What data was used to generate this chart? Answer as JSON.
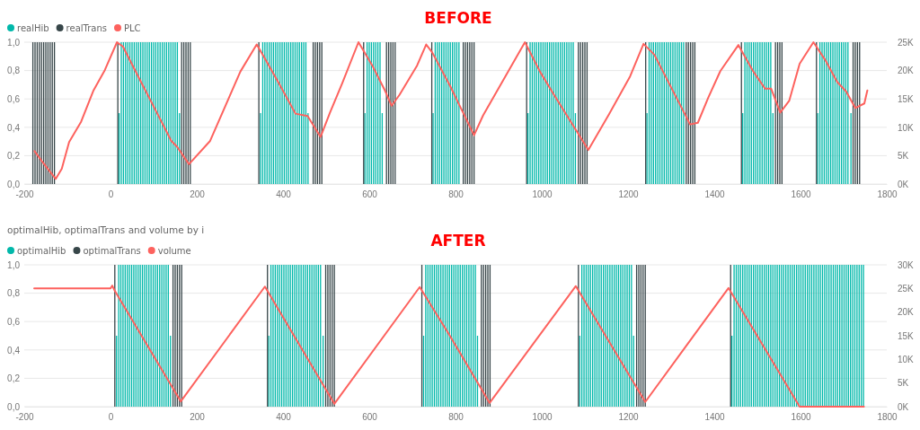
{
  "chart_data": [
    {
      "type": "bar",
      "annotations": [
        "BEFORE"
      ],
      "legend": "top left",
      "grid": "y",
      "xlim": [
        -200,
        1800
      ],
      "xticks": [
        -200,
        0,
        200,
        400,
        600,
        800,
        1000,
        1200,
        1400,
        1600,
        1800
      ],
      "ylim": [
        0,
        1
      ],
      "yticks": [
        {
          "value": 0,
          "label": "0,0"
        },
        {
          "value": 0.2,
          "label": "0,2"
        },
        {
          "value": 0.4,
          "label": "0,4"
        },
        {
          "value": 0.6,
          "label": "0,6"
        },
        {
          "value": 0.8,
          "label": "0,8"
        },
        {
          "value": 1,
          "label": "1,0"
        }
      ],
      "y2lim": [
        0,
        25000
      ],
      "y2ticks": [
        {
          "value": 0,
          "label": "0K"
        },
        {
          "value": 5000,
          "label": "5K"
        },
        {
          "value": 10000,
          "label": "10K"
        },
        {
          "value": 15000,
          "label": "15K"
        },
        {
          "value": 20000,
          "label": "20K"
        },
        {
          "value": 25000,
          "label": "25K"
        }
      ],
      "series": [
        {
          "name": "realHib",
          "color": "#01b8aa",
          "x": [
            20,
            25,
            30,
            35,
            40,
            45,
            50,
            55,
            60,
            65,
            70,
            75,
            80,
            85,
            90,
            95,
            100,
            105,
            110,
            115,
            120,
            125,
            130,
            135,
            140,
            145,
            150,
            155,
            160,
            348,
            353,
            358,
            363,
            368,
            373,
            378,
            383,
            388,
            393,
            398,
            403,
            408,
            413,
            418,
            423,
            428,
            433,
            438,
            443,
            448,
            453,
            458,
            590,
            595,
            600,
            605,
            610,
            615,
            620,
            625,
            630,
            748,
            753,
            758,
            763,
            768,
            773,
            778,
            783,
            788,
            793,
            798,
            803,
            808,
            968,
            973,
            978,
            983,
            988,
            993,
            998,
            1003,
            1008,
            1013,
            1018,
            1023,
            1028,
            1033,
            1038,
            1043,
            1048,
            1053,
            1058,
            1063,
            1068,
            1073,
            1078,
            1244,
            1249,
            1254,
            1259,
            1264,
            1269,
            1274,
            1279,
            1284,
            1289,
            1294,
            1299,
            1304,
            1309,
            1314,
            1319,
            1324,
            1329,
            1466,
            1471,
            1476,
            1481,
            1486,
            1491,
            1496,
            1501,
            1506,
            1511,
            1516,
            1521,
            1526,
            1531,
            1536,
            1640,
            1645,
            1650,
            1655,
            1660,
            1665,
            1670,
            1675,
            1680,
            1685,
            1690,
            1695,
            1700,
            1705,
            1710,
            1717
          ],
          "values": [
            0.5,
            1,
            1,
            1,
            1,
            1,
            1,
            1,
            1,
            1,
            1,
            1,
            1,
            1,
            1,
            1,
            1,
            1,
            1,
            1,
            1,
            1,
            1,
            1,
            1,
            1,
            1,
            1,
            0.5,
            0.5,
            1,
            1,
            1,
            1,
            1,
            1,
            1,
            1,
            1,
            1,
            1,
            1,
            1,
            1,
            1,
            1,
            1,
            1,
            1,
            1,
            1,
            0.5,
            0.5,
            1,
            1,
            1,
            1,
            1,
            1,
            1,
            0.5,
            0.5,
            1,
            1,
            1,
            1,
            1,
            1,
            1,
            1,
            1,
            1,
            1,
            1,
            0.5,
            1,
            1,
            1,
            1,
            1,
            1,
            1,
            1,
            1,
            1,
            1,
            1,
            1,
            1,
            1,
            1,
            1,
            1,
            1,
            1,
            1,
            0.5,
            0.5,
            1,
            1,
            1,
            1,
            1,
            1,
            1,
            1,
            1,
            1,
            1,
            1,
            1,
            1,
            1,
            1,
            1,
            0.5,
            1,
            1,
            1,
            1,
            1,
            1,
            1,
            1,
            1,
            1,
            1,
            1,
            1,
            0.5,
            0.5,
            1,
            1,
            1,
            1,
            1,
            1,
            1,
            1,
            1,
            1,
            1,
            1,
            1,
            1,
            0.5
          ]
        },
        {
          "name": "realTrans",
          "color": "#374649",
          "x": [
            -180,
            -175,
            -170,
            -165,
            -160,
            -155,
            -150,
            -145,
            -140,
            -135,
            -130,
            17,
            165,
            170,
            175,
            180,
            185,
            344,
            470,
            475,
            480,
            485,
            490,
            587,
            640,
            645,
            650,
            655,
            660,
            745,
            818,
            823,
            828,
            833,
            838,
            843,
            965,
            1085,
            1090,
            1095,
            1100,
            1105,
            1241,
            1335,
            1340,
            1345,
            1350,
            1355,
            1463,
            1542,
            1547,
            1552,
            1557,
            1637,
            1722,
            1727,
            1732,
            1737
          ],
          "values": [
            1,
            1,
            1,
            1,
            1,
            1,
            1,
            1,
            1,
            1,
            1,
            1,
            1,
            1,
            1,
            1,
            1,
            1,
            1,
            1,
            1,
            1,
            1,
            1,
            1,
            1,
            1,
            1,
            1,
            1,
            1,
            1,
            1,
            1,
            1,
            1,
            1,
            1,
            1,
            1,
            1,
            1,
            1,
            1,
            1,
            1,
            1,
            1,
            1,
            1,
            1,
            1,
            1,
            1,
            1,
            1,
            1,
            1
          ]
        },
        {
          "name": "PLC",
          "type": "line",
          "axis": "y2",
          "color": "#fd625e",
          "x": [
            -176,
            -159,
            -127,
            -113,
            -96,
            -68,
            -40,
            -13,
            15,
            29,
            64,
            106,
            141,
            154,
            182,
            231,
            301,
            339,
            356,
            391,
            429,
            457,
            487,
            509,
            537,
            575,
            607,
            635,
            652,
            670,
            711,
            732,
            746,
            788,
            843,
            864,
            961,
            996,
            1027,
            1108,
            1156,
            1205,
            1236,
            1261,
            1330,
            1344,
            1362,
            1386,
            1414,
            1456,
            1490,
            1518,
            1532,
            1553,
            1574,
            1598,
            1630,
            1657,
            1685,
            1706,
            1727,
            1748,
            1755
          ],
          "values": [
            5800,
            4000,
            900,
            2700,
            7400,
            11000,
            16400,
            20100,
            25000,
            24200,
            19000,
            12800,
            7600,
            6600,
            3500,
            7600,
            19800,
            24600,
            22400,
            17700,
            12400,
            12000,
            8300,
            12600,
            17700,
            25000,
            20900,
            16700,
            13800,
            15700,
            20900,
            24600,
            23200,
            17200,
            8600,
            12100,
            25000,
            19800,
            15900,
            6000,
            12300,
            19000,
            24700,
            22800,
            12600,
            10500,
            10800,
            15200,
            19900,
            24500,
            19900,
            16800,
            16800,
            12600,
            14700,
            21200,
            25000,
            21900,
            18000,
            16300,
            13400,
            14200,
            16500
          ]
        }
      ]
    },
    {
      "type": "bar",
      "title": "optimalHib, optimalTrans and volume by i",
      "annotations": [
        "AFTER"
      ],
      "legend": "top left",
      "grid": "y",
      "xlim": [
        -200,
        1800
      ],
      "xticks": [
        -200,
        0,
        200,
        400,
        600,
        800,
        1000,
        1200,
        1400,
        1600,
        1800
      ],
      "ylim": [
        0,
        1
      ],
      "yticks": [
        {
          "value": 0,
          "label": "0,0"
        },
        {
          "value": 0.2,
          "label": "0,2"
        },
        {
          "value": 0.4,
          "label": "0,4"
        },
        {
          "value": 0.6,
          "label": "0,6"
        },
        {
          "value": 0.8,
          "label": "0,8"
        },
        {
          "value": 1,
          "label": "1,0"
        }
      ],
      "y2lim": [
        0,
        30000
      ],
      "y2ticks": [
        {
          "value": 0,
          "label": "0K"
        },
        {
          "value": 5000,
          "label": "5K"
        },
        {
          "value": 10000,
          "label": "10K"
        },
        {
          "value": 15000,
          "label": "15K"
        },
        {
          "value": 20000,
          "label": "20K"
        },
        {
          "value": 25000,
          "label": "25K"
        },
        {
          "value": 30000,
          "label": "30K"
        }
      ],
      "series": [
        {
          "name": "optimalHib",
          "color": "#01b8aa",
          "x": [
            14,
            19,
            24,
            29,
            34,
            39,
            44,
            49,
            54,
            59,
            64,
            69,
            74,
            79,
            84,
            89,
            94,
            99,
            104,
            109,
            114,
            119,
            124,
            129,
            134,
            139,
            367,
            372,
            377,
            382,
            387,
            392,
            397,
            402,
            407,
            412,
            417,
            422,
            427,
            432,
            437,
            442,
            447,
            452,
            457,
            462,
            467,
            472,
            477,
            482,
            487,
            493,
            726,
            731,
            736,
            741,
            746,
            751,
            756,
            761,
            766,
            771,
            776,
            781,
            786,
            791,
            796,
            801,
            806,
            811,
            816,
            821,
            826,
            831,
            836,
            841,
            846,
            851,
            1088,
            1093,
            1098,
            1103,
            1108,
            1113,
            1118,
            1123,
            1128,
            1133,
            1138,
            1143,
            1148,
            1153,
            1158,
            1163,
            1168,
            1173,
            1178,
            1183,
            1188,
            1193,
            1198,
            1203,
            1208,
            1213,
            1441,
            1446,
            1451,
            1456,
            1461,
            1466,
            1471,
            1476,
            1481,
            1486,
            1491,
            1496,
            1501,
            1506,
            1511,
            1516,
            1521,
            1526,
            1531,
            1536,
            1541,
            1546,
            1551,
            1556,
            1561,
            1566,
            1571,
            1576,
            1581,
            1586,
            1591,
            1596,
            1601,
            1606,
            1611,
            1616,
            1621,
            1626,
            1631,
            1636,
            1641,
            1646,
            1651,
            1656,
            1661,
            1666,
            1671,
            1676,
            1681,
            1686,
            1691,
            1696,
            1701,
            1706,
            1711,
            1716,
            1721,
            1726,
            1731,
            1736,
            1741,
            1746
          ],
          "values": [
            0.5,
            1,
            1,
            1,
            1,
            1,
            1,
            1,
            1,
            1,
            1,
            1,
            1,
            1,
            1,
            1,
            1,
            1,
            1,
            1,
            1,
            1,
            1,
            1,
            1,
            0.5,
            0.5,
            1,
            1,
            1,
            1,
            1,
            1,
            1,
            1,
            1,
            1,
            1,
            1,
            1,
            1,
            1,
            1,
            1,
            1,
            1,
            1,
            1,
            1,
            1,
            1,
            0.5,
            0.5,
            1,
            1,
            1,
            1,
            1,
            1,
            1,
            1,
            1,
            1,
            1,
            1,
            1,
            1,
            1,
            1,
            1,
            1,
            1,
            1,
            1,
            1,
            1,
            1,
            0.5,
            0.5,
            1,
            1,
            1,
            1,
            1,
            1,
            1,
            1,
            1,
            1,
            1,
            1,
            1,
            1,
            1,
            1,
            1,
            1,
            1,
            1,
            1,
            1,
            1,
            1,
            0.5,
            0.5,
            1,
            1,
            1,
            1,
            1,
            1,
            1,
            1,
            1,
            1,
            1,
            1,
            1,
            1,
            1,
            1,
            1,
            1,
            1,
            1,
            1,
            1,
            1,
            1,
            1,
            1,
            1,
            1,
            1,
            1,
            1,
            1,
            1,
            1,
            1,
            1,
            1,
            1,
            1,
            1,
            1,
            1,
            1,
            1,
            1,
            1,
            1,
            1,
            1,
            1,
            1,
            1,
            1,
            1,
            1,
            1,
            1,
            1,
            1,
            1,
            1
          ]
        },
        {
          "name": "optimalTrans",
          "color": "#374649",
          "x": [
            10,
            145,
            150,
            155,
            160,
            165,
            364,
            499,
            504,
            509,
            514,
            519,
            722,
            860,
            865,
            870,
            875,
            880,
            1085,
            1220,
            1225,
            1230,
            1235,
            1240,
            1438
          ],
          "values": [
            1,
            1,
            1,
            1,
            1,
            1,
            1,
            1,
            1,
            1,
            1,
            1,
            1,
            1,
            1,
            1,
            1,
            1,
            1,
            1,
            1,
            1,
            1,
            1,
            1
          ]
        },
        {
          "name": "volume",
          "type": "line",
          "axis": "y2",
          "color": "#fd625e",
          "x": [
            -177,
            0,
            4,
            10,
            163,
            358,
            519,
            717,
            785,
            879,
            1079,
            1240,
            1433,
            1598,
            1747
          ],
          "values": [
            25000,
            25000,
            25600,
            24500,
            1100,
            25400,
            600,
            25300,
            15300,
            800,
            25500,
            1000,
            25100,
            0,
            0
          ]
        }
      ]
    }
  ]
}
